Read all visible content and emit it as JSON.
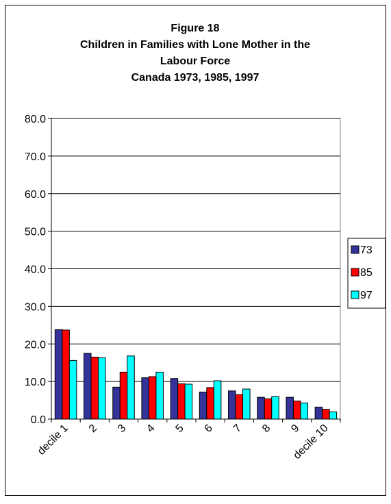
{
  "chart_data": {
    "type": "bar",
    "title": [
      "Figure 18",
      "Children in Families with Lone Mother in the",
      "Labour Force",
      "Canada 1973, 1985, 1997"
    ],
    "categories": [
      "decile 1",
      "2",
      "3",
      "4",
      "5",
      "6",
      "7",
      "8",
      "9",
      "decile 10"
    ],
    "series": [
      {
        "name": "73",
        "color": "#333399",
        "values": [
          23.8,
          17.5,
          8.5,
          11.0,
          10.8,
          7.2,
          7.5,
          5.8,
          5.8,
          3.2
        ]
      },
      {
        "name": "85",
        "color": "#ff0000",
        "values": [
          23.7,
          16.5,
          12.5,
          11.3,
          9.4,
          8.4,
          6.5,
          5.4,
          4.8,
          2.6
        ]
      },
      {
        "name": "97",
        "color": "#00ffff",
        "values": [
          15.6,
          16.3,
          16.8,
          12.5,
          9.3,
          10.2,
          8.0,
          6.0,
          4.3,
          1.9
        ]
      }
    ],
    "ylim": [
      0,
      80
    ],
    "yticks": [
      {
        "value": 0,
        "label": "0.0"
      },
      {
        "value": 10,
        "label": "10.0"
      },
      {
        "value": 20,
        "label": "20.0"
      },
      {
        "value": 30,
        "label": "30.0"
      },
      {
        "value": 40,
        "label": "40.0"
      },
      {
        "value": 50,
        "label": "50.0"
      },
      {
        "value": 60,
        "label": "60.0"
      },
      {
        "value": 70,
        "label": "70.0"
      },
      {
        "value": 80,
        "label": "80.0"
      }
    ],
    "grid": true,
    "legend": "right"
  }
}
